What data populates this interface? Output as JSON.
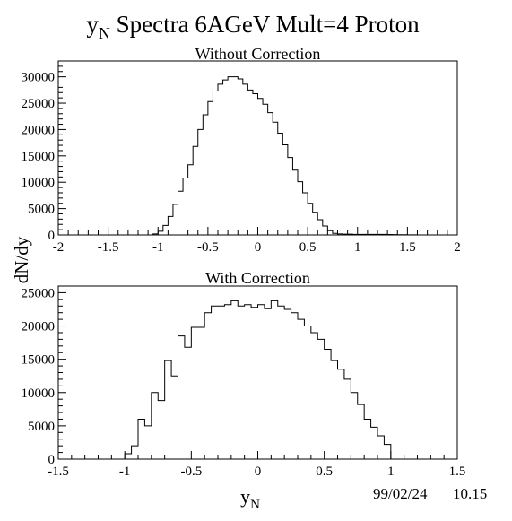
{
  "figure": {
    "title_main": "y",
    "title_sub": "N",
    "title_rest": " Spectra 6AGeV Mult=4 Proton",
    "ylabel": "dN/dy",
    "xlabel_main": "y",
    "xlabel_sub": "N",
    "footer_date": "99/02/24",
    "footer_time": "10.15"
  },
  "chart_data": [
    {
      "type": "histogram",
      "title": "Without Correction",
      "xlim": [
        -2,
        2
      ],
      "ylim": [
        0,
        33000
      ],
      "xticks": [
        -2,
        -1.5,
        -1,
        -0.5,
        0,
        0.5,
        1,
        1.5,
        2
      ],
      "xtick_labels": [
        "-2",
        "-1.5",
        "-1",
        "-0.5",
        "0",
        "0.5",
        "1",
        "1.5",
        "2"
      ],
      "yticks": [
        0,
        5000,
        10000,
        15000,
        20000,
        25000,
        30000
      ],
      "ytick_labels": [
        "0",
        "5000",
        "10000",
        "15000",
        "20000",
        "25000",
        "30000"
      ],
      "bin_width": 0.05,
      "bins_start": [
        -1.05,
        -1.0,
        -0.95,
        -0.9,
        -0.85,
        -0.8,
        -0.75,
        -0.7,
        -0.65,
        -0.6,
        -0.55,
        -0.5,
        -0.45,
        -0.4,
        -0.35,
        -0.3,
        -0.25,
        -0.2,
        -0.15,
        -0.1,
        -0.05,
        0.0,
        0.05,
        0.1,
        0.15,
        0.2,
        0.25,
        0.3,
        0.35,
        0.4,
        0.45,
        0.5,
        0.55,
        0.6,
        0.65,
        0.7,
        0.75,
        0.8,
        0.85,
        0.9,
        0.95,
        1.0,
        1.05,
        1.1,
        1.15,
        1.2,
        1.25,
        1.3,
        1.35,
        1.4,
        1.45,
        1.5,
        1.55,
        1.6,
        1.65,
        1.7,
        1.75,
        1.8,
        1.85
      ],
      "values": [
        200,
        700,
        1800,
        3500,
        5800,
        8300,
        10800,
        13300,
        16800,
        20000,
        22800,
        25300,
        27300,
        28600,
        29400,
        30000,
        30000,
        29600,
        28600,
        27500,
        26800,
        25900,
        24800,
        23200,
        21400,
        19300,
        17100,
        14700,
        12300,
        10100,
        8000,
        6000,
        4300,
        2900,
        1700,
        800,
        300,
        200,
        150,
        150,
        100,
        100,
        100,
        100,
        100,
        100,
        100,
        80,
        60,
        50,
        40,
        30,
        20,
        10,
        10,
        0,
        0,
        0,
        0
      ]
    },
    {
      "type": "histogram",
      "title": "With Correction",
      "xlim": [
        -1.5,
        1.5
      ],
      "ylim": [
        0,
        26000
      ],
      "xticks": [
        -1.5,
        -1,
        -0.5,
        0,
        0.5,
        1,
        1.5
      ],
      "xtick_labels": [
        "-1.5",
        "-1",
        "-0.5",
        "0",
        "0.5",
        "1",
        "1.5"
      ],
      "yticks": [
        0,
        5000,
        10000,
        15000,
        20000,
        25000
      ],
      "ytick_labels": [
        "0",
        "5000",
        "10000",
        "15000",
        "20000",
        "25000"
      ],
      "bin_width": 0.05,
      "bins_start": [
        -1.0,
        -0.95,
        -0.9,
        -0.85,
        -0.8,
        -0.75,
        -0.7,
        -0.65,
        -0.6,
        -0.55,
        -0.5,
        -0.45,
        -0.4,
        -0.35,
        -0.3,
        -0.25,
        -0.2,
        -0.15,
        -0.1,
        -0.05,
        0.0,
        0.05,
        0.1,
        0.15,
        0.2,
        0.25,
        0.3,
        0.35,
        0.4,
        0.45,
        0.5,
        0.55,
        0.6,
        0.65,
        0.7,
        0.75,
        0.8,
        0.85,
        0.9,
        0.95
      ],
      "values": [
        800,
        2000,
        6000,
        5000,
        10000,
        8800,
        14800,
        12500,
        18500,
        16800,
        19800,
        19800,
        22000,
        23000,
        23000,
        23200,
        23800,
        23000,
        23200,
        22800,
        23200,
        22600,
        23800,
        23000,
        22500,
        22000,
        21000,
        20000,
        19000,
        18000,
        16500,
        14800,
        13500,
        12000,
        10000,
        8200,
        6000,
        4800,
        3500,
        2200
      ]
    }
  ]
}
